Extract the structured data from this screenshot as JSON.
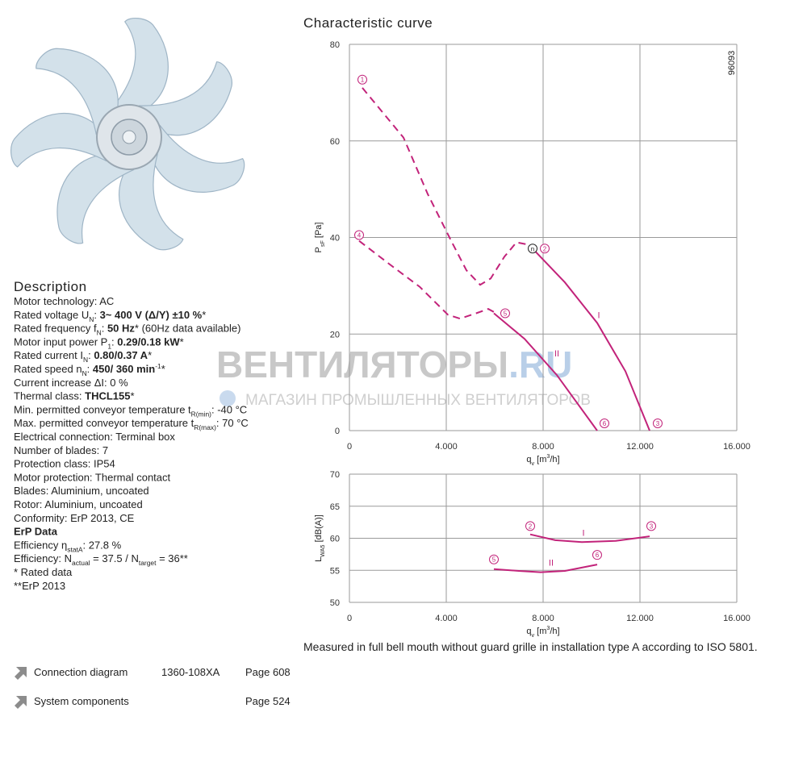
{
  "fan_image": {},
  "description": {
    "title": "Description",
    "lines": [
      [
        "Motor technology: AC"
      ],
      [
        "Rated voltage U",
        {
          "sub": "N"
        },
        ": ",
        {
          "b": "3~ 400 V (Δ/Y) ±10 %"
        },
        "*"
      ],
      [
        "Rated frequency f",
        {
          "sub": "N"
        },
        ": ",
        {
          "b": "50 Hz"
        },
        "* (60Hz data available)"
      ],
      [
        "Motor input power P",
        {
          "sub": "1"
        },
        ": ",
        {
          "b": "0.29/0.18 kW"
        },
        "*"
      ],
      [
        "Rated current I",
        {
          "sub": "N"
        },
        ": ",
        {
          "b": "0.80/0.37 A"
        },
        "*"
      ],
      [
        "Rated speed n",
        {
          "sub": "N"
        },
        ": ",
        {
          "b": "450/ 360 min"
        },
        {
          "sup": "-1"
        },
        "*"
      ],
      [
        "Current increase ΔI: 0 %"
      ],
      [
        "Thermal class: ",
        {
          "b": "THCL155"
        },
        "*"
      ],
      [
        "Min. permitted conveyor temperature t",
        {
          "sub": "R(min)"
        },
        ": -40  °C"
      ],
      [
        "Max. permitted conveyor temperature t",
        {
          "sub": "R(max)"
        },
        ": 70  °C"
      ],
      [
        "Electrical connection: Terminal box"
      ],
      [
        "Number of blades: 7"
      ],
      [
        "Protection class: IP54"
      ],
      [
        "Motor protection: Thermal contact"
      ],
      [
        "Blades: Aluminium, uncoated"
      ],
      [
        "Rotor: Aluminium, uncoated"
      ],
      [
        "Conformity: ErP 2013, CE"
      ],
      [
        {
          "b": "ErP Data"
        }
      ],
      [
        "Efficiency η",
        {
          "sub": "statA"
        },
        ": 27.8 %"
      ],
      [
        "Efficiency: N",
        {
          "sub": "actual"
        },
        " = 37.5 / N",
        {
          "sub": "target"
        },
        " = 36**"
      ],
      [
        "* Rated data"
      ],
      [
        "**ErP 2013"
      ]
    ]
  },
  "watermark": {
    "title": "ВЕНТИЛЯТОРЫ",
    "domain": ".RU",
    "subtitle": "МАГАЗИН ПРОМЫШЛЕННЫХ ВЕНТИЛЯТОРОВ"
  },
  "curve_title": "Characteristic curve",
  "chart_data": [
    {
      "type": "line",
      "code": "96093",
      "xlabel": [
        "q",
        {
          "sub": "v"
        },
        " [m",
        {
          "sup": "3"
        },
        "/h]"
      ],
      "ylabel": [
        "P",
        {
          "sub": "sF"
        },
        " [Pa]"
      ],
      "xlim": [
        0,
        16000
      ],
      "xticks": [
        0,
        {
          "value": 4000,
          "label": "4.000"
        },
        {
          "value": 8000,
          "label": "8.000"
        },
        {
          "value": 12000,
          "label": "12.000"
        },
        {
          "value": 16000,
          "label": "16.000"
        }
      ],
      "ylim": [
        0,
        80
      ],
      "yticks": [
        0,
        20,
        40,
        60,
        80
      ],
      "grid": true,
      "series": [
        {
          "color": "#c2237a",
          "dash": true,
          "x": [
            533,
            2233,
            3233,
            4233,
            4833,
            5400,
            5833,
            6400,
            6900,
            7400
          ],
          "values": [
            71,
            60.7,
            49,
            39,
            33.2,
            30.2,
            31.5,
            36,
            39,
            38.5
          ]
        },
        {
          "color": "#c2237a",
          "dash": false,
          "x": [
            7567,
            8900,
            10233,
            11400,
            12400
          ],
          "values": [
            37.7,
            30.7,
            22.3,
            12.3,
            0
          ]
        },
        {
          "color": "#c2237a",
          "dash": true,
          "x": [
            400,
            1567,
            2900,
            4067,
            4567,
            5233,
            5733,
            6067
          ],
          "values": [
            39.3,
            34.8,
            29.8,
            24,
            23.2,
            24.3,
            25.2,
            24.3
          ]
        },
        {
          "color": "#c2237a",
          "dash": false,
          "x": [
            5967,
            7233,
            8567,
            10233
          ],
          "values": [
            24.3,
            19,
            11.5,
            0
          ]
        }
      ],
      "markers": [
        {
          "label": "1",
          "x": 533,
          "y": 72.7,
          "color": "#c2237a"
        },
        {
          "label": "2",
          "x": 8067,
          "y": 37.7,
          "color": "#c2237a"
        },
        {
          "label": "3",
          "x": 12733,
          "y": 1.5,
          "color": "#c2237a"
        },
        {
          "label": "4",
          "x": 400,
          "y": 40.5,
          "color": "#c2237a"
        },
        {
          "label": "5",
          "x": 6433,
          "y": 24.3,
          "color": "#c2237a"
        },
        {
          "label": "6",
          "x": 10533,
          "y": 1.5,
          "color": "#c2237a"
        },
        {
          "label": "n",
          "x": 7567,
          "y": 37.7,
          "color": "#222222"
        }
      ],
      "labels": [
        {
          "label": "I",
          "x": 10300,
          "y": 24
        },
        {
          "label": "II",
          "x": 8567,
          "y": 16
        }
      ]
    },
    {
      "type": "line",
      "xlabel": [
        "q",
        {
          "sub": "v"
        },
        " [m",
        {
          "sup": "3"
        },
        "/h]"
      ],
      "ylabel": [
        "L",
        {
          "sub": "WA5"
        },
        " [dB(A)]"
      ],
      "xlim": [
        0,
        16000
      ],
      "xticks": [
        0,
        {
          "value": 4000,
          "label": "4.000"
        },
        {
          "value": 8000,
          "label": "8.000"
        },
        {
          "value": 12000,
          "label": "12.000"
        },
        {
          "value": 16000,
          "label": "16.000"
        }
      ],
      "ylim": [
        50,
        70
      ],
      "yticks": [
        50,
        55,
        60,
        65,
        70
      ],
      "grid": true,
      "series": [
        {
          "color": "#c2237a",
          "dash": false,
          "x": [
            7467,
            8500,
            9600,
            11000,
            12400
          ],
          "values": [
            60.6,
            59.7,
            59.4,
            59.6,
            60.3
          ]
        },
        {
          "color": "#c2237a",
          "dash": false,
          "x": [
            5967,
            7000,
            7900,
            8900,
            10233
          ],
          "values": [
            55.2,
            54.9,
            54.7,
            54.9,
            55.9
          ]
        }
      ],
      "markers": [
        {
          "label": "2",
          "x": 7467,
          "y": 61.9,
          "color": "#c2237a"
        },
        {
          "label": "3",
          "x": 12467,
          "y": 61.9,
          "color": "#c2237a"
        },
        {
          "label": "5",
          "x": 5967,
          "y": 56.7,
          "color": "#c2237a"
        },
        {
          "label": "6",
          "x": 10233,
          "y": 57.4,
          "color": "#c2237a"
        }
      ],
      "labels": [
        {
          "label": "I",
          "x": 9667,
          "y": 60.9
        },
        {
          "label": "II",
          "x": 8333,
          "y": 56.2
        }
      ]
    }
  ],
  "footnote": "Measured in full bell mouth without guard grille in installation type A according to ISO 5801.",
  "links": [
    [
      "Connection diagram",
      "1360-108XA",
      "Page 608"
    ],
    [
      "System components",
      "Page 524"
    ]
  ]
}
